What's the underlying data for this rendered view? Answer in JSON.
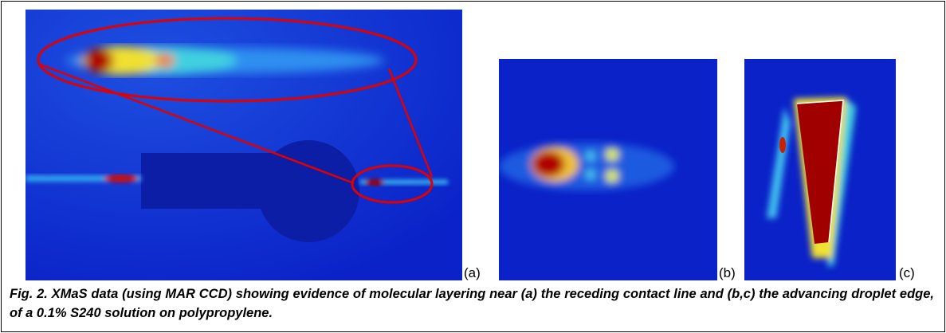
{
  "panels": [
    {
      "label": "(a)"
    },
    {
      "label": "(b)"
    },
    {
      "label": "(c)"
    }
  ],
  "caption": "Fig. 2. XMaS data (using MAR CCD) showing evidence of molecular layering near (a) the receding contact line and (b,c) the advancing droplet edge, of a 0.1% S240 solution on polypropylene."
}
